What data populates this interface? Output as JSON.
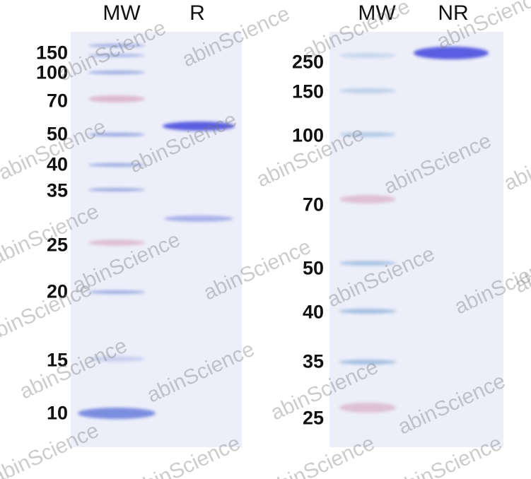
{
  "left_gel": {
    "lanes": [
      "MW",
      "R"
    ],
    "mw_labels": [
      "150",
      "100",
      "70",
      "50",
      "40",
      "35",
      "25",
      "20",
      "15",
      "10"
    ]
  },
  "right_gel": {
    "lanes": [
      "MW",
      "NR"
    ],
    "mw_labels": [
      "250",
      "150",
      "100",
      "70",
      "50",
      "40",
      "35",
      "25"
    ]
  },
  "watermark": "abinScience",
  "colors": {
    "gel": "#eceef9",
    "marker_blue": "#7f93d8",
    "marker_pink": "#d6a3b8",
    "sample_band": "#5a5ee0"
  }
}
